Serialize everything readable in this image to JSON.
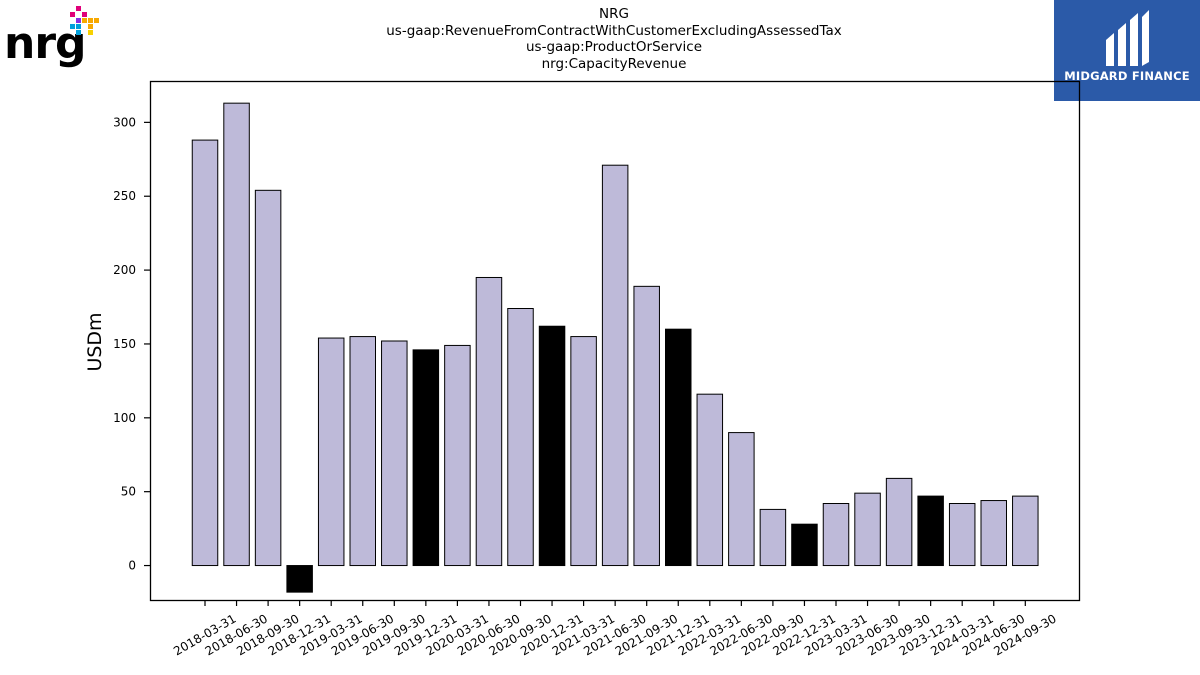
{
  "header": {
    "title_lines": [
      "NRG",
      "us-gaap:RevenueFromContractWithCustomerExcludingAssessedTax",
      "us-gaap:ProductOrService",
      "nrg:CapacityRevenue"
    ]
  },
  "logos": {
    "left_brand": "nrg",
    "right_brand": "MIDGARD FINANCE"
  },
  "colors": {
    "bar_default": "#bebad9",
    "bar_highlight": "#000000",
    "bar_edge": "#000000",
    "logo_bg": "#2b5aa8"
  },
  "chart_data": {
    "type": "bar",
    "title": "NRG us-gaap:RevenueFromContractWithCustomerExcludingAssessedTax us-gaap:ProductOrService nrg:CapacityRevenue",
    "xlabel": "",
    "ylabel": "USDm",
    "ylim": [
      -24,
      328
    ],
    "yticks": [
      0,
      50,
      100,
      150,
      200,
      250,
      300
    ],
    "grid": false,
    "categories": [
      "2018-03-31",
      "2018-06-30",
      "2018-09-30",
      "2018-12-31",
      "2019-03-31",
      "2019-06-30",
      "2019-09-30",
      "2019-12-31",
      "2020-03-31",
      "2020-06-30",
      "2020-09-30",
      "2020-12-31",
      "2021-03-31",
      "2021-06-30",
      "2021-09-30",
      "2021-12-31",
      "2022-03-31",
      "2022-06-30",
      "2022-09-30",
      "2022-12-31",
      "2023-03-31",
      "2023-06-30",
      "2023-09-30",
      "2023-12-31",
      "2024-03-31",
      "2024-06-30",
      "2024-09-30"
    ],
    "values": [
      288,
      313,
      254,
      -18,
      154,
      155,
      152,
      146,
      149,
      195,
      174,
      162,
      155,
      271,
      189,
      160,
      116,
      90,
      38,
      28,
      42,
      49,
      59,
      47,
      42,
      44,
      47
    ],
    "highlight": [
      false,
      false,
      false,
      true,
      false,
      false,
      false,
      true,
      false,
      false,
      false,
      true,
      false,
      false,
      false,
      true,
      false,
      false,
      false,
      true,
      false,
      false,
      false,
      true,
      false,
      false,
      false
    ]
  }
}
